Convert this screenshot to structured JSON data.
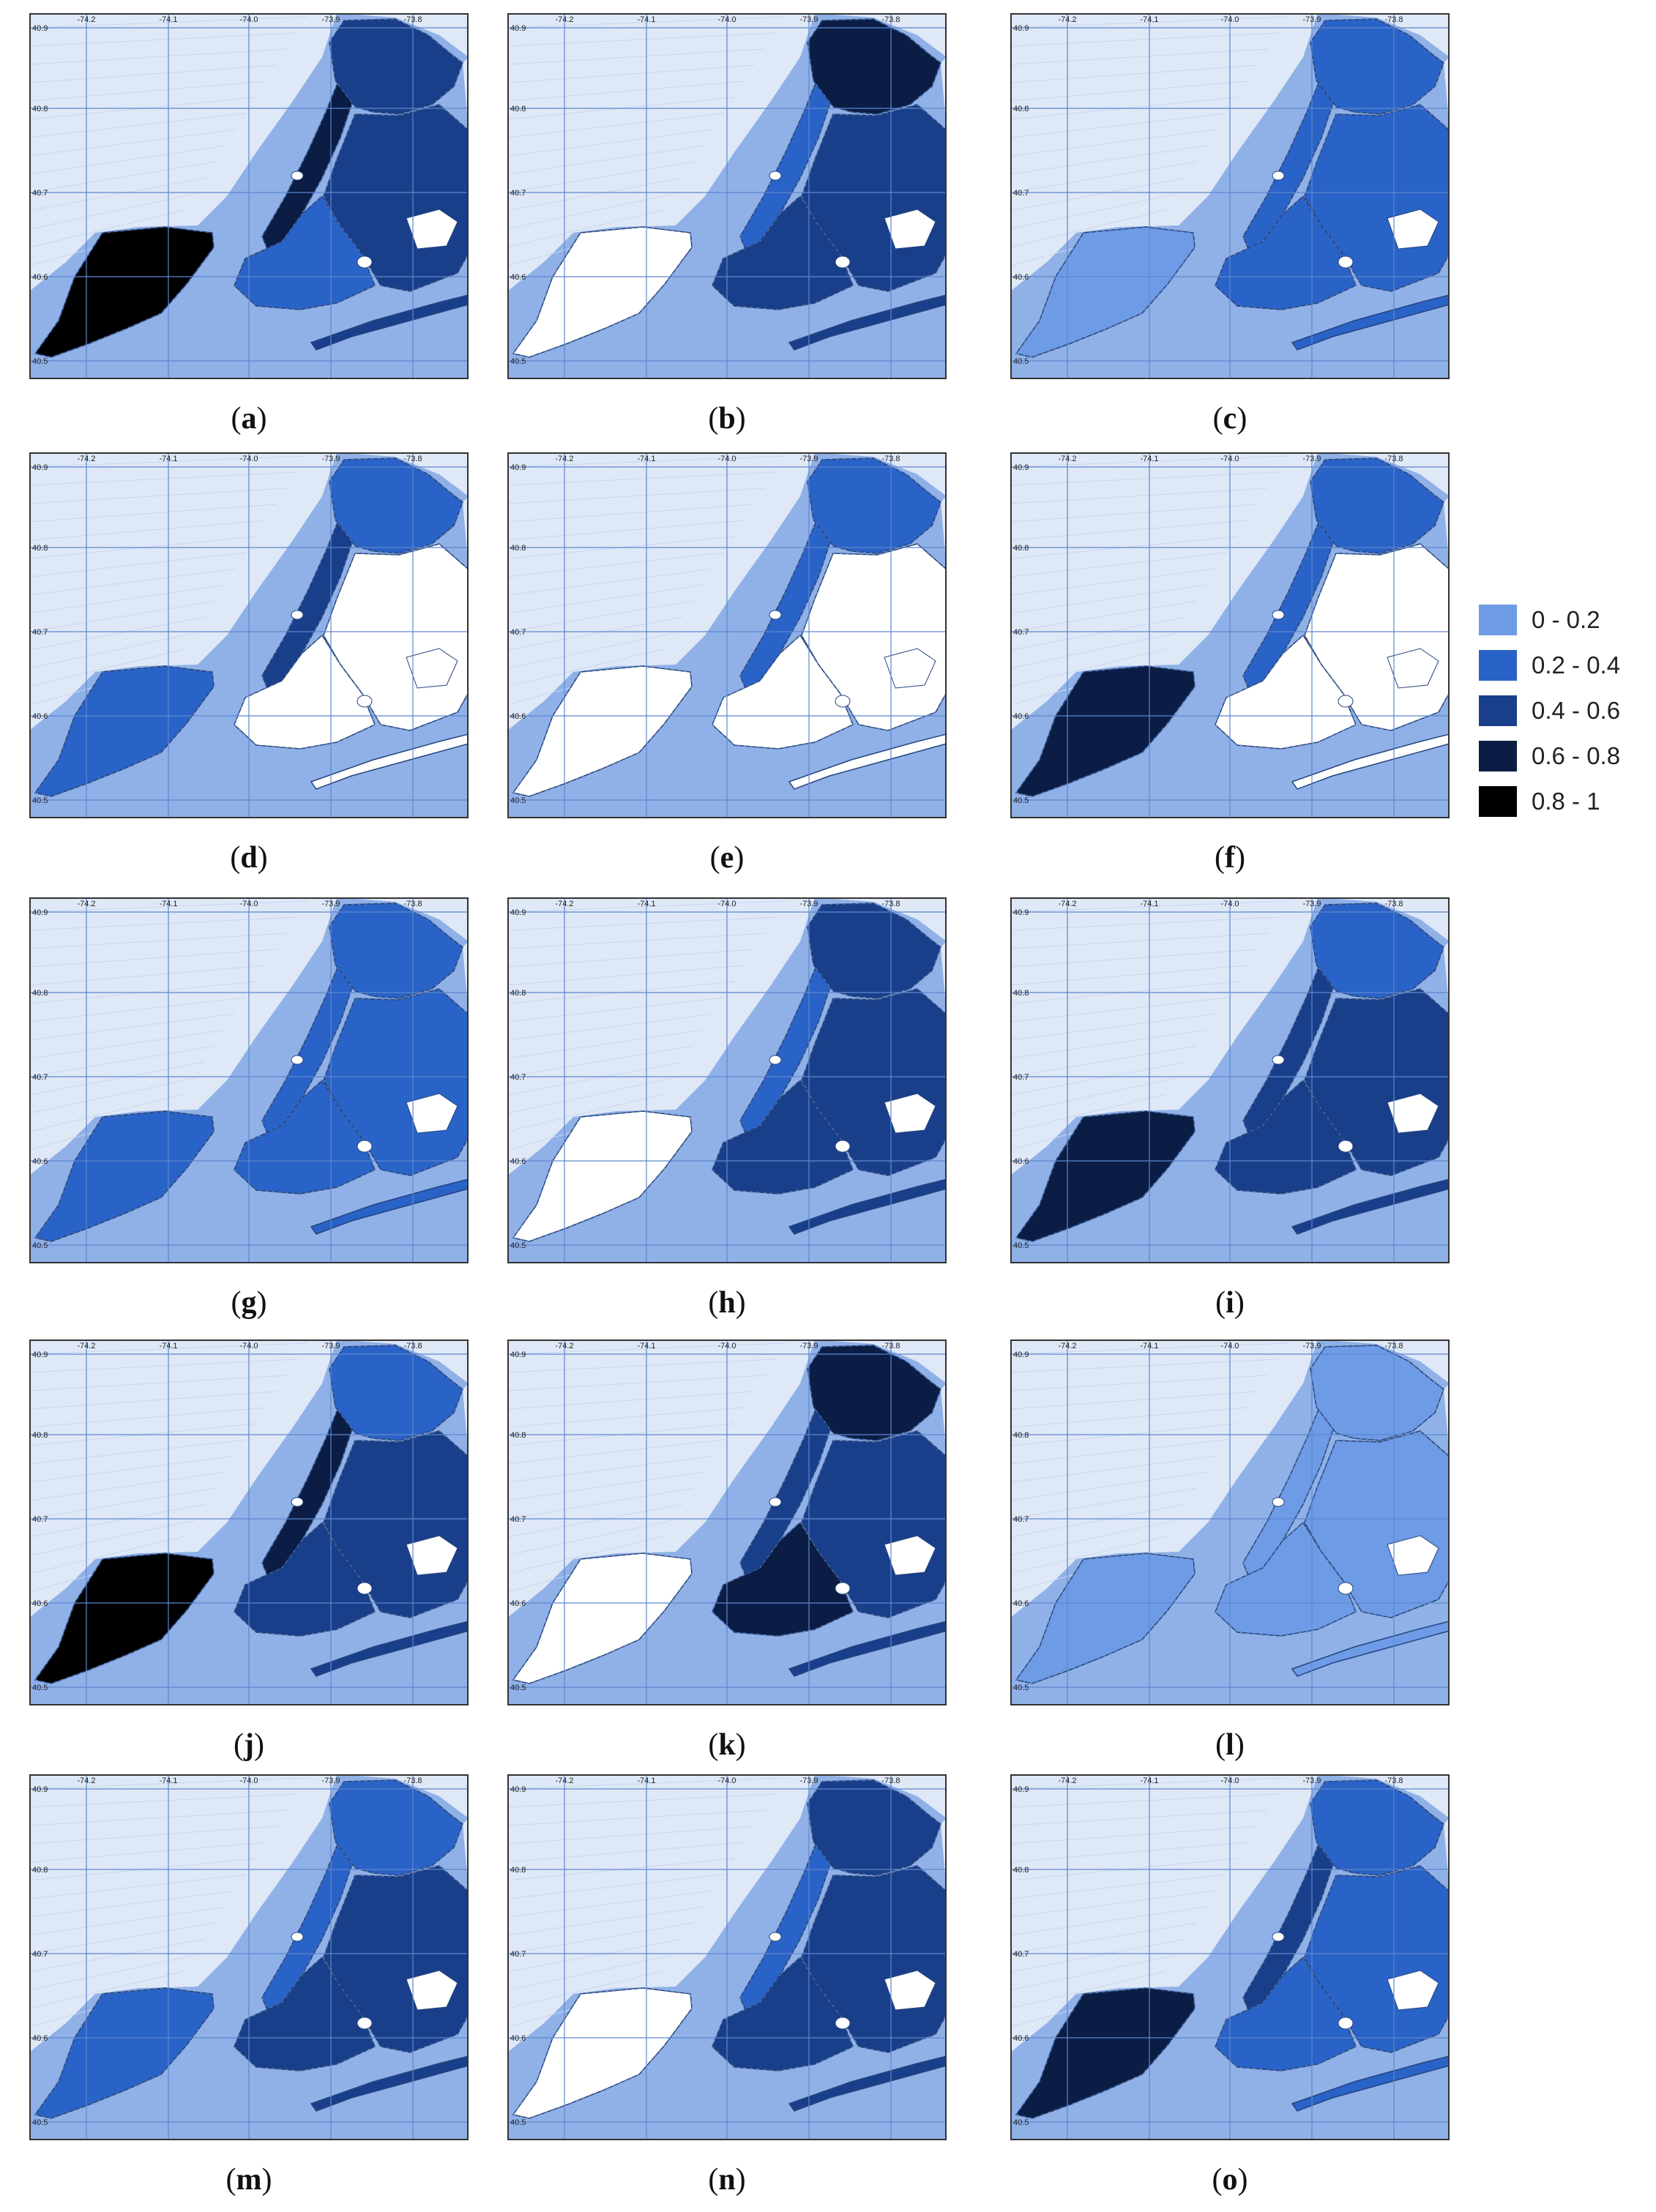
{
  "tick_labels": {
    "x": [
      "-74.2",
      "-74.1",
      "-74.0",
      "-73.9",
      "-73.8"
    ],
    "y": [
      "40.9",
      "40.8",
      "40.7",
      "40.6",
      "40.5"
    ]
  },
  "legend": [
    {
      "label": "0 - 0.2",
      "color": "#6e9be6"
    },
    {
      "label": "0.2 - 0.4",
      "color": "#2a63c7"
    },
    {
      "label": "0.4 - 0.6",
      "color": "#1a3f8a"
    },
    {
      "label": "0.6 - 0.8",
      "color": "#0b1d44"
    },
    {
      "label": "0.8 - 1",
      "color": "#000000"
    }
  ],
  "colors": {
    "water": "#8fb1e8",
    "land_background": "#dfe8f6",
    "grid": "#5d86cf",
    "district_outline": "#ffffff"
  },
  "panels": [
    {
      "id": "a",
      "levels": {
        "staten": 4,
        "manhattan": 3,
        "bronx": 2,
        "queens": 2,
        "brooklyn": 1
      }
    },
    {
      "id": "b",
      "levels": {
        "staten": -1,
        "manhattan": 1,
        "bronx": 3,
        "queens": 2,
        "brooklyn": 2
      }
    },
    {
      "id": "c",
      "levels": {
        "staten": 0,
        "manhattan": 1,
        "bronx": 1,
        "queens": 1,
        "brooklyn": 1
      }
    },
    {
      "id": "d",
      "levels": {
        "staten": 1,
        "manhattan": 2,
        "bronx": 1,
        "queens": -1,
        "brooklyn": -1
      }
    },
    {
      "id": "e",
      "levels": {
        "staten": -1,
        "manhattan": 1,
        "bronx": 1,
        "queens": -1,
        "brooklyn": -1
      }
    },
    {
      "id": "f",
      "levels": {
        "staten": 3,
        "manhattan": 1,
        "bronx": 1,
        "queens": -1,
        "brooklyn": -1
      }
    },
    {
      "id": "g",
      "levels": {
        "staten": 1,
        "manhattan": 1,
        "bronx": 1,
        "queens": 1,
        "brooklyn": 1
      }
    },
    {
      "id": "h",
      "levels": {
        "staten": -1,
        "manhattan": 1,
        "bronx": 2,
        "queens": 2,
        "brooklyn": 2
      }
    },
    {
      "id": "i",
      "levels": {
        "staten": 3,
        "manhattan": 2,
        "bronx": 1,
        "queens": 2,
        "brooklyn": 2
      }
    },
    {
      "id": "j",
      "levels": {
        "staten": 4,
        "manhattan": 3,
        "bronx": 1,
        "queens": 2,
        "brooklyn": 2
      }
    },
    {
      "id": "k",
      "levels": {
        "staten": -1,
        "manhattan": 2,
        "bronx": 3,
        "queens": 2,
        "brooklyn": 3
      }
    },
    {
      "id": "l",
      "levels": {
        "staten": 0,
        "manhattan": 0,
        "bronx": 0,
        "queens": 0,
        "brooklyn": 0
      }
    },
    {
      "id": "m",
      "levels": {
        "staten": 1,
        "manhattan": 1,
        "bronx": 1,
        "queens": 2,
        "brooklyn": 2
      }
    },
    {
      "id": "n",
      "levels": {
        "staten": -1,
        "manhattan": 1,
        "bronx": 2,
        "queens": 2,
        "brooklyn": 2
      }
    },
    {
      "id": "o",
      "levels": {
        "staten": 3,
        "manhattan": 2,
        "bronx": 1,
        "queens": 1,
        "brooklyn": 1
      }
    }
  ]
}
